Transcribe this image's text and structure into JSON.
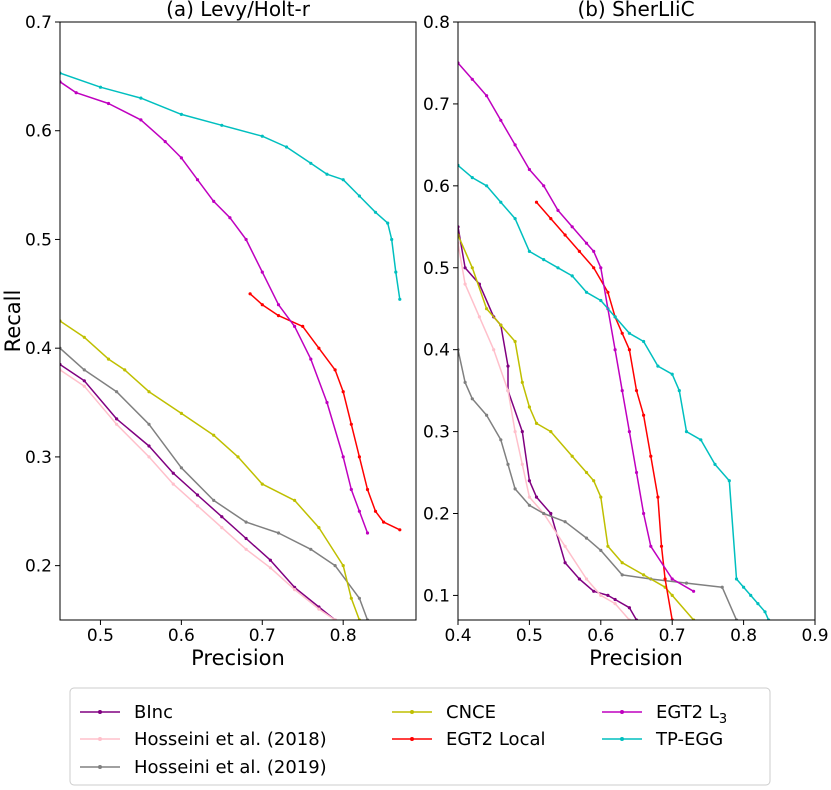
{
  "legend": {
    "entries": [
      {
        "key": "binc",
        "label": "BInc",
        "color": "#800080"
      },
      {
        "key": "h2018",
        "label": "Hosseini et al. (2018)",
        "color": "#ffc0cb"
      },
      {
        "key": "h2019",
        "label": "Hosseini et al. (2019)",
        "color": "#808080"
      },
      {
        "key": "cnce",
        "label": "CNCE",
        "color": "#bfbf00"
      },
      {
        "key": "egt2local",
        "label": "EGT2 Local",
        "color": "#ff0000"
      },
      {
        "key": "egt2l3",
        "label": "EGT2 L",
        "label_sub": "3",
        "color": "#bf00bf"
      },
      {
        "key": "tpegg",
        "label": "TP-EGG",
        "color": "#00bfbf"
      }
    ]
  },
  "chart_data": [
    {
      "type": "line",
      "title": "(a) Levy/Holt-r",
      "xlabel": "Precision",
      "ylabel": "Recall",
      "xlim": [
        0.45,
        0.89
      ],
      "ylim": [
        0.15,
        0.7
      ],
      "xticks": [
        0.5,
        0.6,
        0.7,
        0.8
      ],
      "yticks": [
        0.2,
        0.3,
        0.4,
        0.5,
        0.6,
        0.7
      ],
      "xtick_labels": [
        "0.5",
        "0.6",
        "0.7",
        "0.8"
      ],
      "ytick_labels": [
        "0.2",
        "0.3",
        "0.4",
        "0.5",
        "0.6",
        "0.7"
      ],
      "series": [
        {
          "key": "binc",
          "name": "BInc",
          "x": [
            0.45,
            0.48,
            0.52,
            0.56,
            0.59,
            0.62,
            0.65,
            0.68,
            0.71,
            0.74,
            0.77,
            0.79
          ],
          "y": [
            0.385,
            0.37,
            0.335,
            0.31,
            0.285,
            0.265,
            0.245,
            0.225,
            0.205,
            0.18,
            0.162,
            0.15
          ]
        },
        {
          "key": "h2018",
          "name": "Hosseini et al. (2018)",
          "x": [
            0.45,
            0.48,
            0.52,
            0.56,
            0.59,
            0.62,
            0.65,
            0.68,
            0.71,
            0.74,
            0.77,
            0.79
          ],
          "y": [
            0.38,
            0.365,
            0.33,
            0.3,
            0.275,
            0.255,
            0.235,
            0.215,
            0.198,
            0.178,
            0.16,
            0.15
          ]
        },
        {
          "key": "h2019",
          "name": "Hosseini et al. (2019)",
          "x": [
            0.45,
            0.48,
            0.52,
            0.56,
            0.6,
            0.64,
            0.68,
            0.72,
            0.76,
            0.79,
            0.82,
            0.83
          ],
          "y": [
            0.4,
            0.38,
            0.36,
            0.33,
            0.29,
            0.26,
            0.24,
            0.23,
            0.215,
            0.2,
            0.17,
            0.15
          ]
        },
        {
          "key": "cnce",
          "name": "CNCE",
          "x": [
            0.45,
            0.48,
            0.51,
            0.53,
            0.56,
            0.6,
            0.64,
            0.67,
            0.7,
            0.74,
            0.77,
            0.8,
            0.81,
            0.82
          ],
          "y": [
            0.425,
            0.41,
            0.39,
            0.38,
            0.36,
            0.34,
            0.32,
            0.3,
            0.275,
            0.26,
            0.235,
            0.2,
            0.17,
            0.15
          ]
        },
        {
          "key": "egt2local",
          "name": "EGT2 Local",
          "x": [
            0.685,
            0.7,
            0.72,
            0.75,
            0.77,
            0.79,
            0.8,
            0.81,
            0.82,
            0.83,
            0.84,
            0.85,
            0.87
          ],
          "y": [
            0.45,
            0.44,
            0.43,
            0.42,
            0.4,
            0.38,
            0.36,
            0.33,
            0.3,
            0.27,
            0.25,
            0.24,
            0.233
          ]
        },
        {
          "key": "egt2l3",
          "name": "EGT2 L3",
          "x": [
            0.45,
            0.47,
            0.51,
            0.55,
            0.58,
            0.6,
            0.62,
            0.64,
            0.66,
            0.68,
            0.7,
            0.72,
            0.74,
            0.76,
            0.78,
            0.8,
            0.81,
            0.82,
            0.83
          ],
          "y": [
            0.645,
            0.635,
            0.625,
            0.61,
            0.59,
            0.575,
            0.555,
            0.535,
            0.52,
            0.5,
            0.47,
            0.44,
            0.42,
            0.39,
            0.35,
            0.3,
            0.27,
            0.25,
            0.23
          ]
        },
        {
          "key": "tpegg",
          "name": "TP-EGG",
          "x": [
            0.45,
            0.5,
            0.55,
            0.6,
            0.65,
            0.7,
            0.73,
            0.76,
            0.78,
            0.8,
            0.82,
            0.84,
            0.855,
            0.86,
            0.865,
            0.87
          ],
          "y": [
            0.653,
            0.64,
            0.63,
            0.615,
            0.605,
            0.595,
            0.585,
            0.57,
            0.56,
            0.555,
            0.54,
            0.525,
            0.515,
            0.5,
            0.47,
            0.445
          ]
        }
      ]
    },
    {
      "type": "line",
      "title": "(b) SherLIiC",
      "xlabel": "Precision",
      "ylabel": "",
      "xlim": [
        0.4,
        0.9
      ],
      "ylim": [
        0.07,
        0.8
      ],
      "xticks": [
        0.4,
        0.5,
        0.6,
        0.7,
        0.8,
        0.9
      ],
      "yticks": [
        0.1,
        0.2,
        0.3,
        0.4,
        0.5,
        0.6,
        0.7,
        0.8
      ],
      "xtick_labels": [
        "0.4",
        "0.5",
        "0.6",
        "0.7",
        "0.8",
        "0.9"
      ],
      "ytick_labels": [
        "0.1",
        "0.2",
        "0.3",
        "0.4",
        "0.5",
        "0.6",
        "0.7",
        "0.8"
      ],
      "series": [
        {
          "key": "binc",
          "name": "BInc",
          "x": [
            0.4,
            0.41,
            0.43,
            0.45,
            0.46,
            0.47,
            0.47,
            0.49,
            0.5,
            0.51,
            0.53,
            0.55,
            0.57,
            0.59,
            0.61,
            0.62,
            0.64,
            0.65
          ],
          "y": [
            0.55,
            0.5,
            0.48,
            0.44,
            0.43,
            0.38,
            0.35,
            0.3,
            0.24,
            0.22,
            0.2,
            0.14,
            0.12,
            0.105,
            0.1,
            0.095,
            0.085,
            0.07
          ]
        },
        {
          "key": "h2018",
          "name": "Hosseini et al. (2018)",
          "x": [
            0.4,
            0.41,
            0.43,
            0.45,
            0.47,
            0.48,
            0.49,
            0.5,
            0.52,
            0.55,
            0.58,
            0.6,
            0.62,
            0.64
          ],
          "y": [
            0.53,
            0.48,
            0.44,
            0.4,
            0.35,
            0.3,
            0.26,
            0.22,
            0.2,
            0.16,
            0.12,
            0.1,
            0.09,
            0.07
          ]
        },
        {
          "key": "h2019",
          "name": "Hosseini et al. (2019)",
          "x": [
            0.4,
            0.41,
            0.42,
            0.44,
            0.46,
            0.47,
            0.48,
            0.5,
            0.52,
            0.55,
            0.58,
            0.6,
            0.63,
            0.67,
            0.72,
            0.77,
            0.79
          ],
          "y": [
            0.4,
            0.36,
            0.34,
            0.32,
            0.29,
            0.26,
            0.23,
            0.21,
            0.2,
            0.19,
            0.17,
            0.155,
            0.125,
            0.12,
            0.115,
            0.11,
            0.07
          ]
        },
        {
          "key": "cnce",
          "name": "CNCE",
          "x": [
            0.4,
            0.42,
            0.44,
            0.46,
            0.48,
            0.49,
            0.5,
            0.51,
            0.53,
            0.56,
            0.58,
            0.59,
            0.6,
            0.61,
            0.63,
            0.66,
            0.69,
            0.7,
            0.73
          ],
          "y": [
            0.54,
            0.5,
            0.45,
            0.43,
            0.41,
            0.36,
            0.33,
            0.31,
            0.3,
            0.27,
            0.25,
            0.24,
            0.22,
            0.16,
            0.14,
            0.125,
            0.11,
            0.1,
            0.07
          ]
        },
        {
          "key": "egt2local",
          "name": "EGT2 Local",
          "x": [
            0.51,
            0.53,
            0.55,
            0.57,
            0.59,
            0.61,
            0.62,
            0.63,
            0.64,
            0.65,
            0.66,
            0.67,
            0.68,
            0.685,
            0.69,
            0.7
          ],
          "y": [
            0.58,
            0.56,
            0.54,
            0.52,
            0.5,
            0.47,
            0.44,
            0.42,
            0.4,
            0.35,
            0.32,
            0.27,
            0.22,
            0.16,
            0.12,
            0.07
          ]
        },
        {
          "key": "egt2l3",
          "name": "EGT2 L3",
          "x": [
            0.4,
            0.42,
            0.44,
            0.46,
            0.48,
            0.5,
            0.52,
            0.54,
            0.56,
            0.58,
            0.59,
            0.6,
            0.61,
            0.62,
            0.63,
            0.64,
            0.65,
            0.66,
            0.67,
            0.7,
            0.73
          ],
          "y": [
            0.75,
            0.73,
            0.71,
            0.68,
            0.65,
            0.62,
            0.6,
            0.57,
            0.55,
            0.53,
            0.52,
            0.5,
            0.45,
            0.4,
            0.35,
            0.3,
            0.25,
            0.2,
            0.16,
            0.12,
            0.105
          ]
        },
        {
          "key": "tpegg",
          "name": "TP-EGG",
          "x": [
            0.4,
            0.42,
            0.44,
            0.46,
            0.48,
            0.5,
            0.52,
            0.54,
            0.56,
            0.58,
            0.6,
            0.62,
            0.64,
            0.66,
            0.68,
            0.7,
            0.71,
            0.72,
            0.74,
            0.76,
            0.78,
            0.79,
            0.8,
            0.81,
            0.82,
            0.83,
            0.835
          ],
          "y": [
            0.625,
            0.61,
            0.6,
            0.58,
            0.56,
            0.52,
            0.51,
            0.5,
            0.49,
            0.47,
            0.46,
            0.44,
            0.42,
            0.41,
            0.38,
            0.37,
            0.35,
            0.3,
            0.29,
            0.26,
            0.24,
            0.12,
            0.11,
            0.1,
            0.09,
            0.08,
            0.07
          ]
        }
      ]
    }
  ]
}
